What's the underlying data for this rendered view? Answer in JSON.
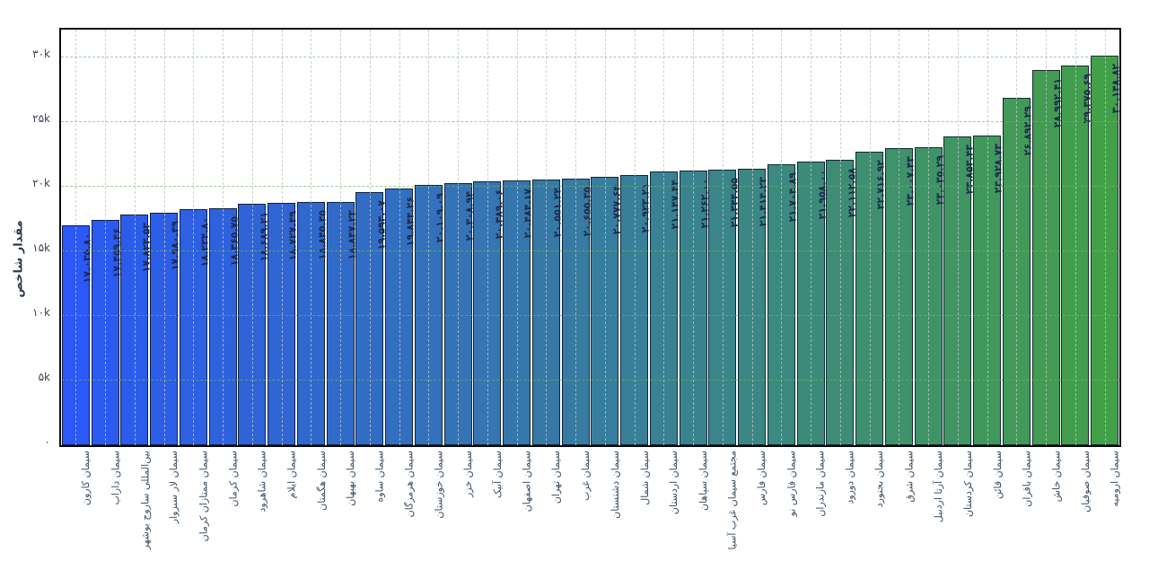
{
  "chart_data": {
    "type": "bar",
    "title": "",
    "xlabel": "",
    "ylabel": "مقدار شاخص",
    "ylim": [
      0,
      32150
    ],
    "grid": "dashed horizontal gridlines (green) every 5k, dashed vertical gridline at each bar center (gray), black mirrored axis frame",
    "legend": "none",
    "yticks": [
      {
        "value": 0,
        "label": "۰"
      },
      {
        "value": 5000,
        "label": "۵k"
      },
      {
        "value": 10000,
        "label": "۱۰k"
      },
      {
        "value": 15000,
        "label": "۱۵k"
      },
      {
        "value": 20000,
        "label": "۲۰k"
      },
      {
        "value": 25000,
        "label": "۲۵k"
      },
      {
        "value": 30000,
        "label": "۳۰k"
      }
    ],
    "colors": {
      "bar_color_start": "#2b58f6",
      "bar_color_end": "#43a049",
      "bar_border": "#0c1626",
      "grid_horizontal": "#6eb46e",
      "grid_vertical": "#c3c3c3",
      "value_label": "#1b2a4a",
      "x_label": "#3d4f66",
      "y_tick": "#3a4250",
      "axis_frame": "#0a0a0a"
    },
    "bars": [
      {
        "category": "سیمان کارون",
        "value": 17035.8,
        "label": "۱۷.۰۳۵.۸۰"
      },
      {
        "category": "سیمان داراب",
        "value": 17459.46,
        "label": "۱۷.۴۵۹.۴۶"
      },
      {
        "category": "بین‌المللی ساروج بوشهر",
        "value": 17823.53,
        "label": "۱۷.۸۲۳.۵۳"
      },
      {
        "category": "سیمان لار سبزوار",
        "value": 17980.49,
        "label": "۱۷.۹۸۰.۴۹"
      },
      {
        "category": "سیمان ممتازان کرمان",
        "value": 18234.8,
        "label": "۱۸.۲۳۴.۸۰"
      },
      {
        "category": "سیمان کرمان",
        "value": 18365.75,
        "label": "۱۸.۳۶۵.۷۵"
      },
      {
        "category": "سیمان شاهرود",
        "value": 18689.21,
        "label": "۱۸.۶۸۹.۲۱"
      },
      {
        "category": "سیمان ایلام",
        "value": 18727.49,
        "label": "۱۸.۷۲۷.۴۹"
      },
      {
        "category": "سیمان هگمتان",
        "value": 18845.35,
        "label": "۱۸.۸۴۵.۳۵"
      },
      {
        "category": "سیمان بهبهان",
        "value": 18847.23,
        "label": "۱۸.۸۴۷.۲۳"
      },
      {
        "category": "سیمان ساوه",
        "value": 19593.07,
        "label": "۱۹.۵۹۳.۰۷"
      },
      {
        "category": "سیمان هرمزگان",
        "value": 19844.26,
        "label": "۱۹.۸۴۴.۲۶"
      },
      {
        "category": "سیمان خوزستان",
        "value": 20109.09,
        "label": "۲۰.۱۰۹.۰۹"
      },
      {
        "category": "سیمان خزر",
        "value": 20308.94,
        "label": "۲۰.۳۰۸.۹۴"
      },
      {
        "category": "سیمان آبیک",
        "value": 20389.06,
        "label": "۲۰.۳۸۹.۰۶"
      },
      {
        "category": "سیمان اصفهان",
        "value": 20484.17,
        "label": "۲۰.۴۸۴.۱۷"
      },
      {
        "category": "سیمان تهران",
        "value": 20551.24,
        "label": "۲۰.۵۵۱.۲۴"
      },
      {
        "category": "سیمان غرب",
        "value": 20655.35,
        "label": "۲۰.۶۵۵.۳۵"
      },
      {
        "category": "سیمان دشتستان",
        "value": 20777.64,
        "label": "۲۰.۷۷۷.۶۴"
      },
      {
        "category": "سیمان شمال",
        "value": 20923.21,
        "label": "۲۰.۹۲۳.۲۱"
      },
      {
        "category": "سیمان اردستان",
        "value": 21147.44,
        "label": "۲۱.۱۴۷.۴۴"
      },
      {
        "category": "سیمان سپاهان",
        "value": 21262.0,
        "label": "۲۱.۲۶۲.۰۰"
      },
      {
        "category": "مجتمع سیمان غرب آسیا",
        "value": 21344.55,
        "label": "۲۱.۳۴۴.۵۵"
      },
      {
        "category": "سیمان فارس",
        "value": 21414.23,
        "label": "۲۱.۴۱۴.۲۳"
      },
      {
        "category": "سیمان فارس نو",
        "value": 21704.89,
        "label": "۲۱.۷۰۴.۸۹"
      },
      {
        "category": "سیمان مازندران",
        "value": 21958.0,
        "label": "۲۱.۹۵۸.۰۰"
      },
      {
        "category": "سیمان دورود",
        "value": 22112.58,
        "label": "۲۲.۱۱۲.۵۸"
      },
      {
        "category": "سیمان بجنورد",
        "value": 22716.92,
        "label": "۲۲.۷۱۶.۹۲"
      },
      {
        "category": "سیمان شرق",
        "value": 23007.43,
        "label": "۲۳.۰۰۷.۴۳"
      },
      {
        "category": "سیمان آرتا اردبیل",
        "value": 23035.29,
        "label": "۲۳.۰۳۵.۲۹"
      },
      {
        "category": "سیمان کردستان",
        "value": 23853.43,
        "label": "۲۳.۸۵۳.۴۳"
      },
      {
        "category": "سیمان قائن",
        "value": 23928.73,
        "label": "۲۳.۹۲۸.۷۳"
      },
      {
        "category": "سیمان باقران",
        "value": 26892.29,
        "label": "۲۶.۸۹۲.۲۹"
      },
      {
        "category": "سیمان خاش",
        "value": 28992.41,
        "label": "۲۸.۹۹۲.۴۱"
      },
      {
        "category": "سیمان صوفیان",
        "value": 29375.69,
        "label": "۲۹.۳۷۵.۶۹"
      },
      {
        "category": "سیمان ارومیه",
        "value": 30148.82,
        "label": "۳۰.۱۴۸.۸۲"
      }
    ]
  }
}
